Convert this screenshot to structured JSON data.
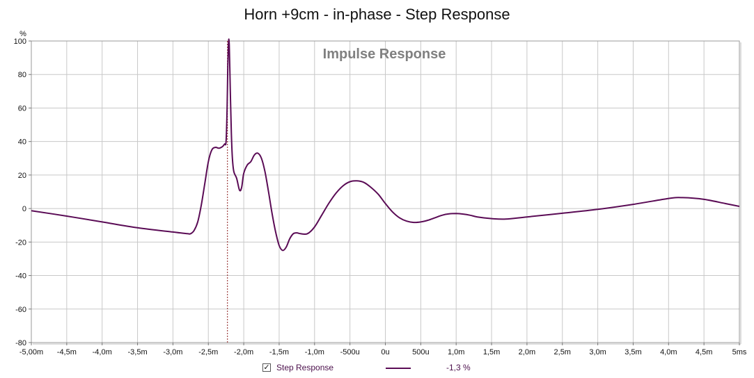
{
  "chart_data": {
    "type": "line",
    "title": "Horn +9cm - in-phase - Step Response",
    "watermark": "Impulse Response",
    "y_unit_label": "%",
    "xlim": [
      -5.0,
      5.0
    ],
    "ylim": [
      -80,
      100
    ],
    "x_ticks": [
      {
        "value": -5.0,
        "label": "-5,00m"
      },
      {
        "value": -4.5,
        "label": "-4,5m"
      },
      {
        "value": -4.0,
        "label": "-4,0m"
      },
      {
        "value": -3.5,
        "label": "-3,5m"
      },
      {
        "value": -3.0,
        "label": "-3,0m"
      },
      {
        "value": -2.5,
        "label": "-2,5m"
      },
      {
        "value": -2.0,
        "label": "-2,0m"
      },
      {
        "value": -1.5,
        "label": "-1,5m"
      },
      {
        "value": -1.0,
        "label": "-1,0m"
      },
      {
        "value": -0.5,
        "label": "-500u"
      },
      {
        "value": 0.0,
        "label": "0u"
      },
      {
        "value": 0.5,
        "label": "500u"
      },
      {
        "value": 1.0,
        "label": "1,0m"
      },
      {
        "value": 1.5,
        "label": "1,5m"
      },
      {
        "value": 2.0,
        "label": "2,0m"
      },
      {
        "value": 2.5,
        "label": "2,5m"
      },
      {
        "value": 3.0,
        "label": "3,0m"
      },
      {
        "value": 3.5,
        "label": "3,5m"
      },
      {
        "value": 4.0,
        "label": "4,0m"
      },
      {
        "value": 4.5,
        "label": "4,5m"
      },
      {
        "value": 5.0,
        "label": "5ms"
      }
    ],
    "y_ticks": [
      100,
      80,
      60,
      40,
      20,
      0,
      -20,
      -40,
      -60,
      -80
    ],
    "grid": true,
    "marker_x": -2.23,
    "series": [
      {
        "name": "Step Response",
        "value_label": "-1,3 %",
        "color": "#5a0b55",
        "points": [
          [
            -5.0,
            -1.3
          ],
          [
            -4.5,
            -4.5
          ],
          [
            -4.0,
            -8.0
          ],
          [
            -3.5,
            -11.5
          ],
          [
            -3.0,
            -14.0
          ],
          [
            -2.8,
            -15.0
          ],
          [
            -2.75,
            -15.0
          ],
          [
            -2.7,
            -13.0
          ],
          [
            -2.65,
            -8.0
          ],
          [
            -2.6,
            2.0
          ],
          [
            -2.55,
            15.0
          ],
          [
            -2.5,
            28.0
          ],
          [
            -2.45,
            35.0
          ],
          [
            -2.4,
            36.5
          ],
          [
            -2.35,
            36.0
          ],
          [
            -2.3,
            37.0
          ],
          [
            -2.27,
            38.5
          ],
          [
            -2.25,
            40.0
          ],
          [
            -2.235,
            60.0
          ],
          [
            -2.225,
            85.0
          ],
          [
            -2.215,
            99.0
          ],
          [
            -2.205,
            98.0
          ],
          [
            -2.19,
            70.0
          ],
          [
            -2.175,
            45.0
          ],
          [
            -2.16,
            30.0
          ],
          [
            -2.14,
            22.0
          ],
          [
            -2.1,
            18.0
          ],
          [
            -2.06,
            11.0
          ],
          [
            -2.03,
            12.5
          ],
          [
            -2.0,
            21.0
          ],
          [
            -1.95,
            26.0
          ],
          [
            -1.9,
            28.0
          ],
          [
            -1.85,
            32.0
          ],
          [
            -1.8,
            33.0
          ],
          [
            -1.75,
            30.0
          ],
          [
            -1.7,
            22.0
          ],
          [
            -1.65,
            10.0
          ],
          [
            -1.6,
            -3.0
          ],
          [
            -1.55,
            -14.0
          ],
          [
            -1.5,
            -22.0
          ],
          [
            -1.45,
            -25.0
          ],
          [
            -1.4,
            -23.0
          ],
          [
            -1.35,
            -18.0
          ],
          [
            -1.3,
            -15.0
          ],
          [
            -1.25,
            -14.5
          ],
          [
            -1.2,
            -15.0
          ],
          [
            -1.1,
            -15.0
          ],
          [
            -1.0,
            -11.0
          ],
          [
            -0.9,
            -4.0
          ],
          [
            -0.8,
            3.0
          ],
          [
            -0.7,
            9.0
          ],
          [
            -0.6,
            13.5
          ],
          [
            -0.5,
            16.0
          ],
          [
            -0.4,
            16.5
          ],
          [
            -0.3,
            15.5
          ],
          [
            -0.2,
            12.5
          ],
          [
            -0.1,
            8.5
          ],
          [
            0.0,
            3.0
          ],
          [
            0.1,
            -2.0
          ],
          [
            0.2,
            -5.5
          ],
          [
            0.3,
            -7.5
          ],
          [
            0.4,
            -8.3
          ],
          [
            0.5,
            -8.0
          ],
          [
            0.6,
            -7.0
          ],
          [
            0.7,
            -5.5
          ],
          [
            0.8,
            -4.0
          ],
          [
            0.9,
            -3.2
          ],
          [
            1.0,
            -3.0
          ],
          [
            1.1,
            -3.3
          ],
          [
            1.2,
            -4.0
          ],
          [
            1.3,
            -5.0
          ],
          [
            1.5,
            -6.0
          ],
          [
            1.7,
            -6.3
          ],
          [
            2.0,
            -5.0
          ],
          [
            2.5,
            -2.8
          ],
          [
            3.0,
            -0.5
          ],
          [
            3.5,
            2.5
          ],
          [
            4.0,
            6.0
          ],
          [
            4.2,
            6.5
          ],
          [
            4.5,
            5.5
          ],
          [
            4.8,
            3.0
          ],
          [
            5.0,
            1.3
          ]
        ]
      }
    ]
  },
  "legend": {
    "checkbox_checked": true,
    "checkbox_glyph": "✓"
  }
}
